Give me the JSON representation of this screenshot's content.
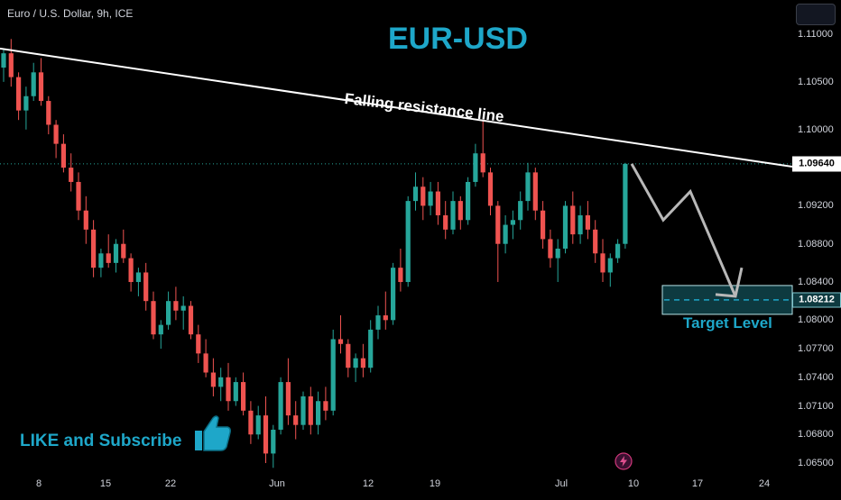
{
  "header": {
    "symbol_label": "Euro / U.S. Dollar, 9h, ICE",
    "title": "EUR-USD"
  },
  "annotations": {
    "resistance": "Falling resistance line",
    "target": "Target Level",
    "like": "LIKE and Subscribe"
  },
  "icons": {
    "thumb": "thumbs-up-icon",
    "fast_forward": "lightning-icon",
    "menu": "menu-icon"
  },
  "colors": {
    "up": "#26a69a",
    "down": "#ef5350",
    "accent": "#1ea7c9",
    "background": "#000000"
  },
  "chart_data": {
    "type": "candlestick",
    "title": "EUR-USD",
    "symbol": "Euro / U.S. Dollar, 9h, ICE",
    "x_ticks": [
      "8",
      "15",
      "22",
      "Jun",
      "12",
      "19",
      "Jul",
      "10",
      "17",
      "24"
    ],
    "y_ticks": [
      "1.11000",
      "1.10500",
      "1.10000",
      "1.09200",
      "1.08800",
      "1.08400",
      "1.08000",
      "1.07700",
      "1.07400",
      "1.07100",
      "1.06800",
      "1.06500"
    ],
    "ylim": [
      1.064,
      1.112
    ],
    "current_price": "1.09640",
    "target_price": "1.08212",
    "resistance_line": {
      "start": 1.1085,
      "end": 1.0961
    },
    "projection": [
      1.0964,
      1.0905,
      1.0935,
      1.0825,
      1.0855
    ],
    "candles": [
      [
        1.1065,
        1.1085,
        1.105,
        1.108
      ],
      [
        1.108,
        1.1095,
        1.1045,
        1.1055
      ],
      [
        1.1055,
        1.106,
        1.101,
        1.102
      ],
      [
        1.102,
        1.1045,
        1.1,
        1.1035
      ],
      [
        1.1035,
        1.107,
        1.103,
        1.106
      ],
      [
        1.106,
        1.1075,
        1.1025,
        1.103
      ],
      [
        1.103,
        1.1035,
        1.0995,
        1.1005
      ],
      [
        1.1005,
        1.101,
        1.097,
        1.0985
      ],
      [
        1.0985,
        1.0995,
        1.0955,
        1.096
      ],
      [
        1.096,
        1.0975,
        1.0935,
        1.0945
      ],
      [
        1.0945,
        1.0955,
        1.0905,
        1.0915
      ],
      [
        1.0915,
        1.093,
        1.088,
        1.0895
      ],
      [
        1.0895,
        1.0905,
        1.0845,
        1.0855
      ],
      [
        1.0855,
        1.0875,
        1.0845,
        1.087
      ],
      [
        1.087,
        1.089,
        1.0855,
        1.086
      ],
      [
        1.086,
        1.0885,
        1.085,
        1.088
      ],
      [
        1.088,
        1.0895,
        1.086,
        1.0865
      ],
      [
        1.0865,
        1.087,
        1.083,
        1.084
      ],
      [
        1.084,
        1.0855,
        1.0825,
        1.085
      ],
      [
        1.085,
        1.086,
        1.081,
        1.082
      ],
      [
        1.082,
        1.083,
        1.078,
        1.0785
      ],
      [
        1.0785,
        1.08,
        1.077,
        1.0795
      ],
      [
        1.0795,
        1.083,
        1.079,
        1.082
      ],
      [
        1.082,
        1.0835,
        1.08,
        1.081
      ],
      [
        1.081,
        1.0825,
        1.079,
        1.0815
      ],
      [
        1.0815,
        1.082,
        1.078,
        1.0785
      ],
      [
        1.0785,
        1.0795,
        1.0755,
        1.0765
      ],
      [
        1.0765,
        1.078,
        1.074,
        1.0745
      ],
      [
        1.0745,
        1.076,
        1.072,
        1.073
      ],
      [
        1.073,
        1.075,
        1.0715,
        1.074
      ],
      [
        1.074,
        1.0755,
        1.0705,
        1.0715
      ],
      [
        1.0715,
        1.074,
        1.071,
        1.0735
      ],
      [
        1.0735,
        1.0745,
        1.07,
        1.0705
      ],
      [
        1.0705,
        1.0715,
        1.067,
        1.068
      ],
      [
        1.068,
        1.071,
        1.0675,
        1.07
      ],
      [
        1.07,
        1.072,
        1.065,
        1.066
      ],
      [
        1.066,
        1.069,
        1.0645,
        1.0685
      ],
      [
        1.0685,
        1.074,
        1.068,
        1.0735
      ],
      [
        1.0735,
        1.076,
        1.069,
        1.07
      ],
      [
        1.07,
        1.0715,
        1.0675,
        1.069
      ],
      [
        1.069,
        1.0725,
        1.0685,
        1.072
      ],
      [
        1.072,
        1.073,
        1.068,
        1.069
      ],
      [
        1.069,
        1.0725,
        1.068,
        1.0715
      ],
      [
        1.0715,
        1.073,
        1.0695,
        1.0705
      ],
      [
        1.0705,
        1.079,
        1.07,
        1.078
      ],
      [
        1.078,
        1.0805,
        1.0765,
        1.0775
      ],
      [
        1.0775,
        1.078,
        1.074,
        1.075
      ],
      [
        1.075,
        1.0765,
        1.0735,
        1.076
      ],
      [
        1.076,
        1.0775,
        1.074,
        1.075
      ],
      [
        1.075,
        1.08,
        1.0745,
        1.079
      ],
      [
        1.079,
        1.0815,
        1.078,
        1.0805
      ],
      [
        1.0805,
        1.083,
        1.079,
        1.08
      ],
      [
        1.08,
        1.086,
        1.0795,
        1.0855
      ],
      [
        1.0855,
        1.0875,
        1.083,
        1.084
      ],
      [
        1.084,
        1.093,
        1.0835,
        1.0925
      ],
      [
        1.0925,
        1.0955,
        1.0915,
        1.094
      ],
      [
        1.094,
        1.095,
        1.0905,
        1.092
      ],
      [
        1.092,
        1.0945,
        1.091,
        1.0935
      ],
      [
        1.0935,
        1.0945,
        1.09,
        1.091
      ],
      [
        1.091,
        1.0925,
        1.0885,
        1.0895
      ],
      [
        1.0895,
        1.0935,
        1.089,
        1.0925
      ],
      [
        1.0925,
        1.093,
        1.0895,
        1.0905
      ],
      [
        1.0905,
        1.095,
        1.09,
        1.0945
      ],
      [
        1.0945,
        1.0985,
        1.094,
        1.0975
      ],
      [
        1.0975,
        1.101,
        1.095,
        1.0955
      ],
      [
        1.0955,
        1.096,
        1.091,
        1.092
      ],
      [
        1.092,
        1.0925,
        1.084,
        1.088
      ],
      [
        1.088,
        1.091,
        1.087,
        1.09
      ],
      [
        1.09,
        1.0915,
        1.0885,
        1.0905
      ],
      [
        1.0905,
        1.0935,
        1.0895,
        1.0925
      ],
      [
        1.0925,
        1.0965,
        1.0915,
        1.0955
      ],
      [
        1.0955,
        1.096,
        1.0905,
        1.0915
      ],
      [
        1.0915,
        1.0925,
        1.0875,
        1.0885
      ],
      [
        1.0885,
        1.0895,
        1.0855,
        1.0865
      ],
      [
        1.0865,
        1.0885,
        1.084,
        1.0875
      ],
      [
        1.0875,
        1.0925,
        1.087,
        1.092
      ],
      [
        1.092,
        1.0935,
        1.088,
        1.089
      ],
      [
        1.089,
        1.092,
        1.088,
        1.091
      ],
      [
        1.091,
        1.0925,
        1.0885,
        1.0895
      ],
      [
        1.0895,
        1.0905,
        1.086,
        1.087
      ],
      [
        1.087,
        1.0885,
        1.084,
        1.085
      ],
      [
        1.085,
        1.087,
        1.0835,
        1.0865
      ],
      [
        1.0865,
        1.0885,
        1.086,
        1.088
      ],
      [
        1.088,
        1.0965,
        1.0875,
        1.0964
      ]
    ]
  }
}
